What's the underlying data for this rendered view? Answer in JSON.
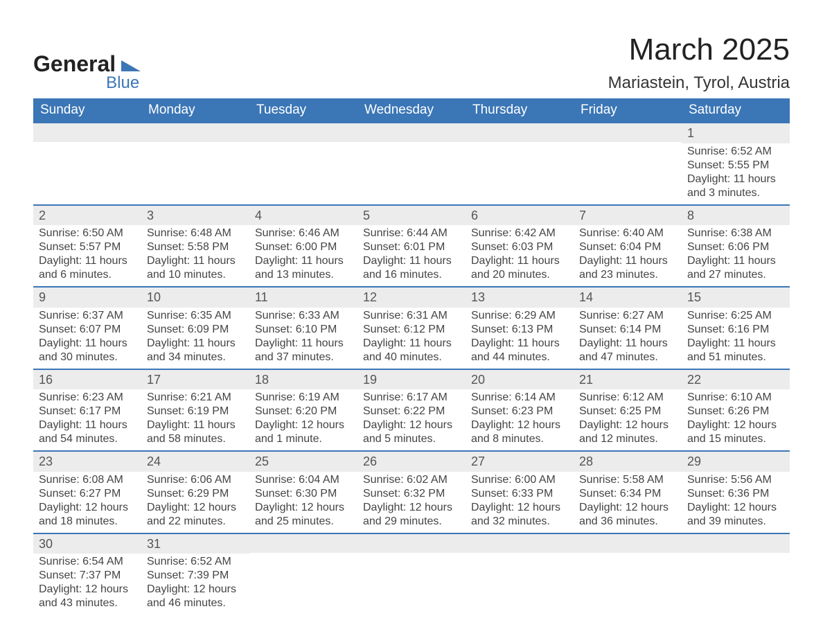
{
  "logo": {
    "text": "General",
    "sub": "Blue"
  },
  "title": "March 2025",
  "location": "Mariastein, Tyrol, Austria",
  "colors": {
    "header_bg": "#3b76b6",
    "header_text": "#ffffff",
    "daynum_bg": "#ececec",
    "text": "#444444",
    "row_border": "#3b76b6"
  },
  "day_headers": [
    "Sunday",
    "Monday",
    "Tuesday",
    "Wednesday",
    "Thursday",
    "Friday",
    "Saturday"
  ],
  "weeks": [
    [
      {
        "blank": true
      },
      {
        "blank": true
      },
      {
        "blank": true
      },
      {
        "blank": true
      },
      {
        "blank": true
      },
      {
        "blank": true
      },
      {
        "num": "1",
        "sunrise": "Sunrise: 6:52 AM",
        "sunset": "Sunset: 5:55 PM",
        "dl1": "Daylight: 11 hours",
        "dl2": "and 3 minutes."
      }
    ],
    [
      {
        "num": "2",
        "sunrise": "Sunrise: 6:50 AM",
        "sunset": "Sunset: 5:57 PM",
        "dl1": "Daylight: 11 hours",
        "dl2": "and 6 minutes."
      },
      {
        "num": "3",
        "sunrise": "Sunrise: 6:48 AM",
        "sunset": "Sunset: 5:58 PM",
        "dl1": "Daylight: 11 hours",
        "dl2": "and 10 minutes."
      },
      {
        "num": "4",
        "sunrise": "Sunrise: 6:46 AM",
        "sunset": "Sunset: 6:00 PM",
        "dl1": "Daylight: 11 hours",
        "dl2": "and 13 minutes."
      },
      {
        "num": "5",
        "sunrise": "Sunrise: 6:44 AM",
        "sunset": "Sunset: 6:01 PM",
        "dl1": "Daylight: 11 hours",
        "dl2": "and 16 minutes."
      },
      {
        "num": "6",
        "sunrise": "Sunrise: 6:42 AM",
        "sunset": "Sunset: 6:03 PM",
        "dl1": "Daylight: 11 hours",
        "dl2": "and 20 minutes."
      },
      {
        "num": "7",
        "sunrise": "Sunrise: 6:40 AM",
        "sunset": "Sunset: 6:04 PM",
        "dl1": "Daylight: 11 hours",
        "dl2": "and 23 minutes."
      },
      {
        "num": "8",
        "sunrise": "Sunrise: 6:38 AM",
        "sunset": "Sunset: 6:06 PM",
        "dl1": "Daylight: 11 hours",
        "dl2": "and 27 minutes."
      }
    ],
    [
      {
        "num": "9",
        "sunrise": "Sunrise: 6:37 AM",
        "sunset": "Sunset: 6:07 PM",
        "dl1": "Daylight: 11 hours",
        "dl2": "and 30 minutes."
      },
      {
        "num": "10",
        "sunrise": "Sunrise: 6:35 AM",
        "sunset": "Sunset: 6:09 PM",
        "dl1": "Daylight: 11 hours",
        "dl2": "and 34 minutes."
      },
      {
        "num": "11",
        "sunrise": "Sunrise: 6:33 AM",
        "sunset": "Sunset: 6:10 PM",
        "dl1": "Daylight: 11 hours",
        "dl2": "and 37 minutes."
      },
      {
        "num": "12",
        "sunrise": "Sunrise: 6:31 AM",
        "sunset": "Sunset: 6:12 PM",
        "dl1": "Daylight: 11 hours",
        "dl2": "and 40 minutes."
      },
      {
        "num": "13",
        "sunrise": "Sunrise: 6:29 AM",
        "sunset": "Sunset: 6:13 PM",
        "dl1": "Daylight: 11 hours",
        "dl2": "and 44 minutes."
      },
      {
        "num": "14",
        "sunrise": "Sunrise: 6:27 AM",
        "sunset": "Sunset: 6:14 PM",
        "dl1": "Daylight: 11 hours",
        "dl2": "and 47 minutes."
      },
      {
        "num": "15",
        "sunrise": "Sunrise: 6:25 AM",
        "sunset": "Sunset: 6:16 PM",
        "dl1": "Daylight: 11 hours",
        "dl2": "and 51 minutes."
      }
    ],
    [
      {
        "num": "16",
        "sunrise": "Sunrise: 6:23 AM",
        "sunset": "Sunset: 6:17 PM",
        "dl1": "Daylight: 11 hours",
        "dl2": "and 54 minutes."
      },
      {
        "num": "17",
        "sunrise": "Sunrise: 6:21 AM",
        "sunset": "Sunset: 6:19 PM",
        "dl1": "Daylight: 11 hours",
        "dl2": "and 58 minutes."
      },
      {
        "num": "18",
        "sunrise": "Sunrise: 6:19 AM",
        "sunset": "Sunset: 6:20 PM",
        "dl1": "Daylight: 12 hours",
        "dl2": "and 1 minute."
      },
      {
        "num": "19",
        "sunrise": "Sunrise: 6:17 AM",
        "sunset": "Sunset: 6:22 PM",
        "dl1": "Daylight: 12 hours",
        "dl2": "and 5 minutes."
      },
      {
        "num": "20",
        "sunrise": "Sunrise: 6:14 AM",
        "sunset": "Sunset: 6:23 PM",
        "dl1": "Daylight: 12 hours",
        "dl2": "and 8 minutes."
      },
      {
        "num": "21",
        "sunrise": "Sunrise: 6:12 AM",
        "sunset": "Sunset: 6:25 PM",
        "dl1": "Daylight: 12 hours",
        "dl2": "and 12 minutes."
      },
      {
        "num": "22",
        "sunrise": "Sunrise: 6:10 AM",
        "sunset": "Sunset: 6:26 PM",
        "dl1": "Daylight: 12 hours",
        "dl2": "and 15 minutes."
      }
    ],
    [
      {
        "num": "23",
        "sunrise": "Sunrise: 6:08 AM",
        "sunset": "Sunset: 6:27 PM",
        "dl1": "Daylight: 12 hours",
        "dl2": "and 18 minutes."
      },
      {
        "num": "24",
        "sunrise": "Sunrise: 6:06 AM",
        "sunset": "Sunset: 6:29 PM",
        "dl1": "Daylight: 12 hours",
        "dl2": "and 22 minutes."
      },
      {
        "num": "25",
        "sunrise": "Sunrise: 6:04 AM",
        "sunset": "Sunset: 6:30 PM",
        "dl1": "Daylight: 12 hours",
        "dl2": "and 25 minutes."
      },
      {
        "num": "26",
        "sunrise": "Sunrise: 6:02 AM",
        "sunset": "Sunset: 6:32 PM",
        "dl1": "Daylight: 12 hours",
        "dl2": "and 29 minutes."
      },
      {
        "num": "27",
        "sunrise": "Sunrise: 6:00 AM",
        "sunset": "Sunset: 6:33 PM",
        "dl1": "Daylight: 12 hours",
        "dl2": "and 32 minutes."
      },
      {
        "num": "28",
        "sunrise": "Sunrise: 5:58 AM",
        "sunset": "Sunset: 6:34 PM",
        "dl1": "Daylight: 12 hours",
        "dl2": "and 36 minutes."
      },
      {
        "num": "29",
        "sunrise": "Sunrise: 5:56 AM",
        "sunset": "Sunset: 6:36 PM",
        "dl1": "Daylight: 12 hours",
        "dl2": "and 39 minutes."
      }
    ],
    [
      {
        "num": "30",
        "sunrise": "Sunrise: 6:54 AM",
        "sunset": "Sunset: 7:37 PM",
        "dl1": "Daylight: 12 hours",
        "dl2": "and 43 minutes."
      },
      {
        "num": "31",
        "sunrise": "Sunrise: 6:52 AM",
        "sunset": "Sunset: 7:39 PM",
        "dl1": "Daylight: 12 hours",
        "dl2": "and 46 minutes."
      },
      {
        "blank": true
      },
      {
        "blank": true
      },
      {
        "blank": true
      },
      {
        "blank": true
      },
      {
        "blank": true
      }
    ]
  ]
}
